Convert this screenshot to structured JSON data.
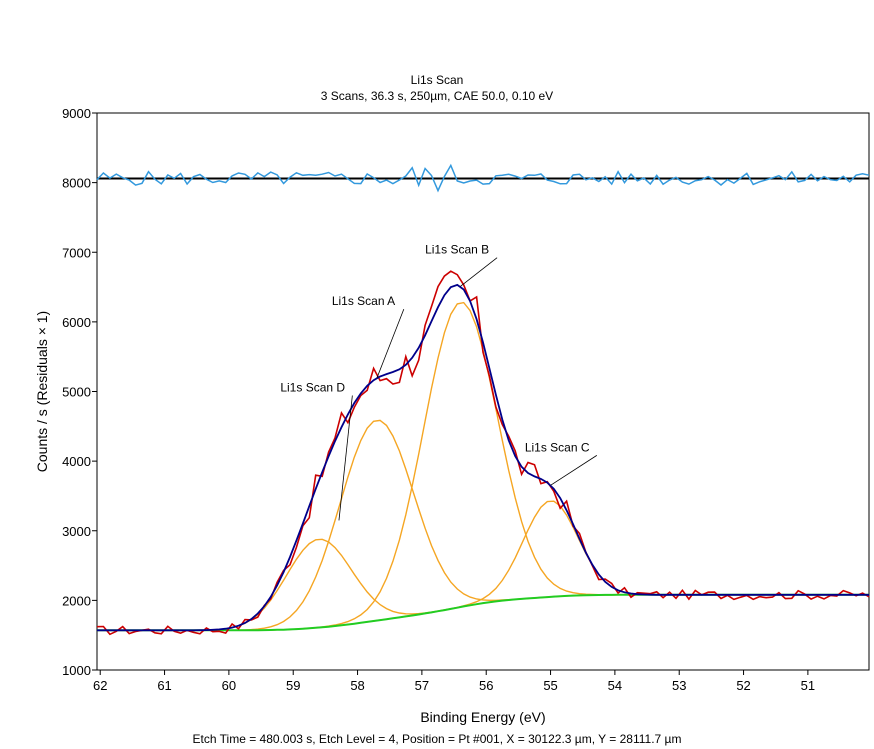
{
  "chart_data": {
    "type": "line",
    "title": "Li1s Scan",
    "subtitle": "3 Scans,  36.3 s,  250µm,  CAE 50.0,  0.10 eV",
    "xlabel": "Binding Energy (eV)",
    "ylabel": "Counts / s  (Residuals × 1)",
    "footer": "Etch Time = 480.003 s, Etch Level = 4, Position = Pt #001, X = 30122.3 µm, Y = 28111.7 µm",
    "xlim": [
      62.05,
      50.05
    ],
    "ylim": [
      1000,
      9000
    ],
    "x_ticks": [
      62,
      61,
      60,
      59,
      58,
      57,
      56,
      55,
      54,
      53,
      52,
      51
    ],
    "y_ticks": [
      1000,
      2000,
      3000,
      4000,
      5000,
      6000,
      7000,
      8000,
      9000
    ],
    "residual_baseline": 8060,
    "components": [
      {
        "name": "Li1s Scan D",
        "center": 58.6,
        "height": 1270,
        "fwhm": 1.2
      },
      {
        "name": "Li1s Scan A",
        "center": 57.7,
        "height": 2880,
        "fwhm": 1.35
      },
      {
        "name": "Li1s Scan B",
        "center": 56.4,
        "height": 4380,
        "fwhm": 1.35
      },
      {
        "name": "Li1s Scan C",
        "center": 55.0,
        "height": 1380,
        "fwhm": 1.0
      }
    ],
    "background": {
      "left": 2080,
      "right": 1570
    },
    "annotations": [
      {
        "text": "Li1s Scan B",
        "x": 56.95,
        "y": 6980
      },
      {
        "text": "Li1s Scan A",
        "x": 58.4,
        "y": 6240
      },
      {
        "text": "Li1s Scan D",
        "x": 59.2,
        "y": 5000
      },
      {
        "text": "Li1s Scan C",
        "x": 55.4,
        "y": 4140
      }
    ],
    "colors": {
      "envelope": "#00008b",
      "raw": "#cc0000",
      "component": "#f5a623",
      "background": "#22cc22",
      "residual": "#3399dd",
      "residual_baseline": "#000000"
    }
  }
}
